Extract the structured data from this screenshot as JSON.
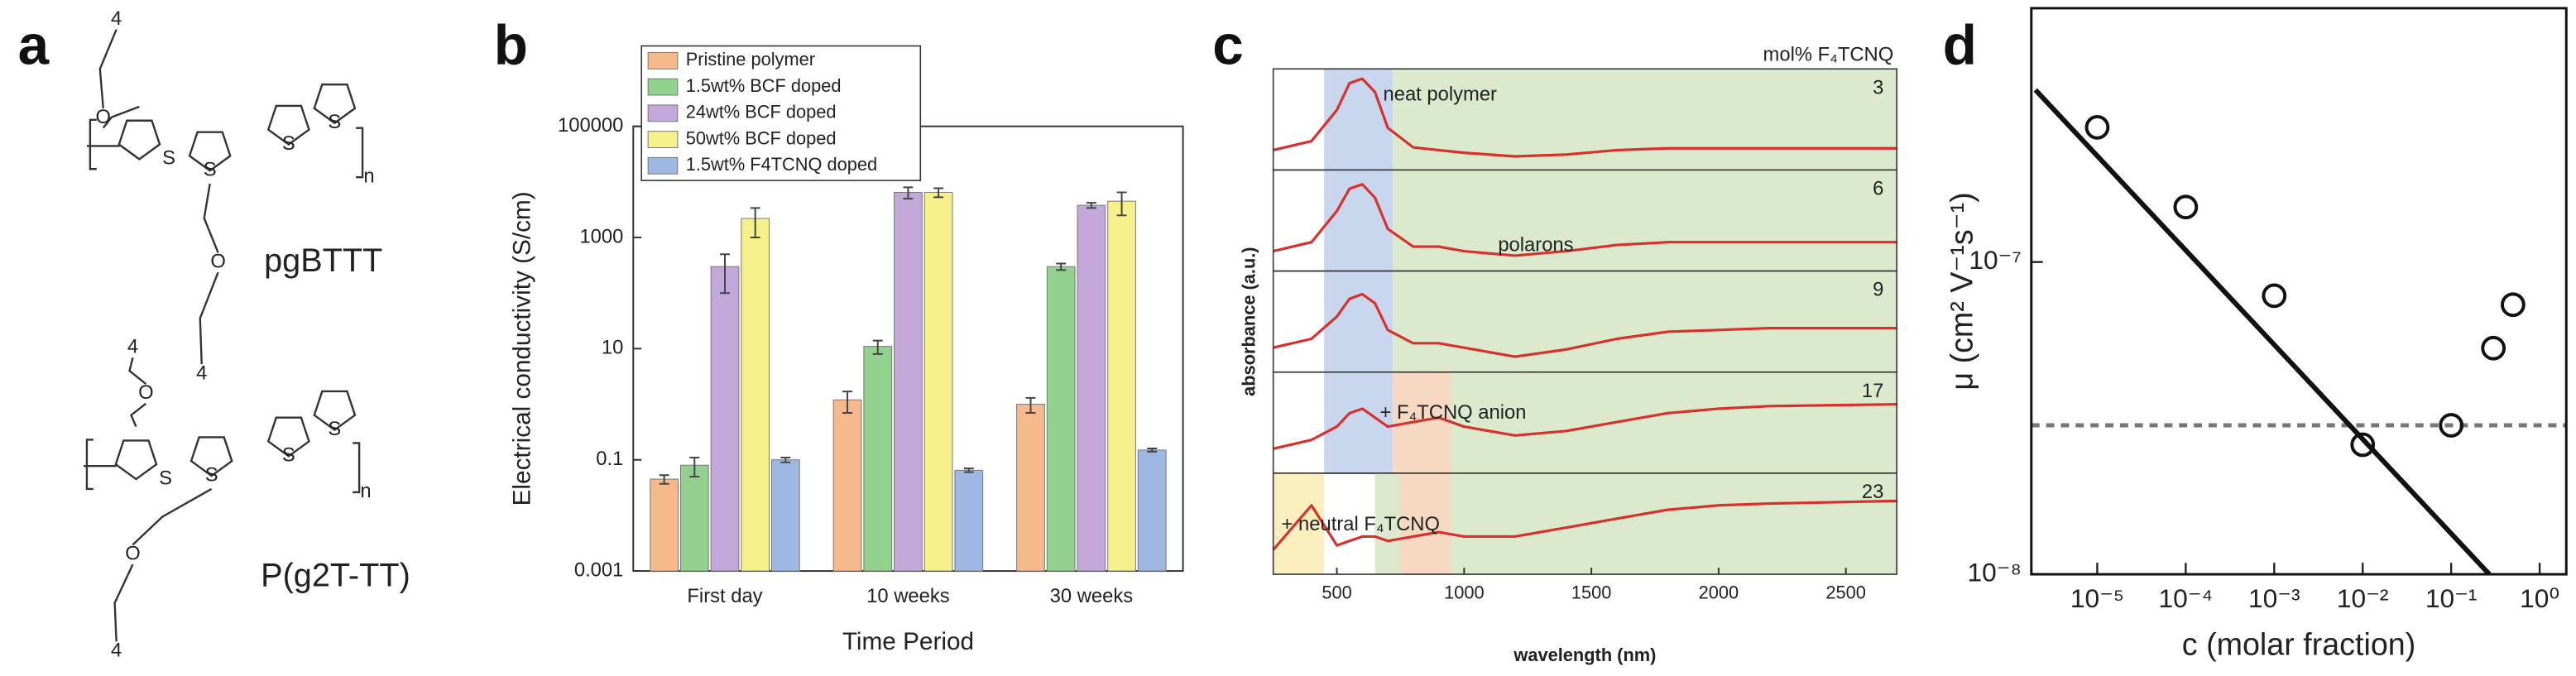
{
  "panel_a": {
    "label": "a",
    "structures": [
      {
        "name": "pgBTTT",
        "atoms": [
          "4",
          "O",
          "S",
          "S",
          "S",
          "S",
          "n",
          "O",
          "4"
        ]
      },
      {
        "name": "P(g2T-TT)",
        "atoms": [
          "4",
          "O",
          "S",
          "S",
          "S",
          "S",
          "n",
          "O",
          "4"
        ]
      }
    ]
  },
  "chart_data": [
    {
      "panel_label": "b",
      "type": "bar",
      "log_y": true,
      "ylabel": "Electrical conductivity (S/cm)",
      "xlabel": "Time Period",
      "categories": [
        "First day",
        "10 weeks",
        "30 weeks"
      ],
      "ylim": [
        0.001,
        100000
      ],
      "yticks": [
        0.001,
        0.1,
        10,
        1000,
        100000
      ],
      "legend": "upper left",
      "series": [
        {
          "name": "Pristine polymer",
          "color": "#f7b98b",
          "values": [
            0.045,
            1.2,
            1.0
          ],
          "errors": [
            0.008,
            0.5,
            0.3
          ]
        },
        {
          "name": "1.5wt% BCF doped",
          "color": "#93d18f",
          "values": [
            0.08,
            11,
            300
          ],
          "errors": [
            0.03,
            3,
            40
          ]
        },
        {
          "name": "24wt% BCF doped",
          "color": "#c3a9d9",
          "values": [
            300,
            6500,
            3800
          ],
          "errors": [
            200,
            1500,
            400
          ]
        },
        {
          "name": "50wt% BCF doped",
          "color": "#f5f08a",
          "values": [
            2200,
            6500,
            4500
          ],
          "errors": [
            1200,
            1200,
            2000
          ]
        },
        {
          "name": "1.5wt% F4TCNQ doped",
          "color": "#9db8e3",
          "values": [
            0.1,
            0.065,
            0.15
          ],
          "errors": [
            0.01,
            0.005,
            0.01
          ]
        }
      ]
    },
    {
      "panel_label": "c",
      "type": "line",
      "title": "mol% F₄TCNQ",
      "xlabel": "wavelength (nm)",
      "ylabel": "absorbance (a.u.)",
      "x": [
        250,
        400,
        500,
        550,
        600,
        650,
        700,
        800,
        900,
        1000,
        1200,
        1400,
        1600,
        1800,
        2000,
        2200,
        2700
      ],
      "xlim": [
        250,
        2700
      ],
      "xticks": [
        500,
        1000,
        1500,
        2000,
        2500
      ],
      "series": [
        {
          "name": "3",
          "color": "#d9302c",
          "values": [
            0.15,
            0.25,
            0.6,
            0.9,
            0.95,
            0.8,
            0.4,
            0.18,
            0.15,
            0.12,
            0.08,
            0.1,
            0.15,
            0.17,
            0.17,
            0.17,
            0.17
          ],
          "regions": [
            {
              "from": 450,
              "to": 720,
              "color": "#c9d7ee"
            },
            {
              "from": 720,
              "to": 2700,
              "color": "#dbe9cc"
            }
          ],
          "annotation": {
            "text": "neat polymer",
            "color": "#4a6fb3"
          }
        },
        {
          "name": "6",
          "color": "#d9302c",
          "values": [
            0.15,
            0.25,
            0.6,
            0.85,
            0.9,
            0.75,
            0.4,
            0.2,
            0.2,
            0.15,
            0.1,
            0.15,
            0.22,
            0.25,
            0.25,
            0.25,
            0.25
          ],
          "regions": [
            {
              "from": 450,
              "to": 720,
              "color": "#c9d7ee"
            },
            {
              "from": 720,
              "to": 2700,
              "color": "#dbe9cc"
            }
          ],
          "annotation": {
            "text": "polarons",
            "color": "#5a9a3a"
          }
        },
        {
          "name": "9",
          "color": "#d9302c",
          "values": [
            0.2,
            0.3,
            0.55,
            0.75,
            0.8,
            0.7,
            0.4,
            0.25,
            0.25,
            0.2,
            0.1,
            0.18,
            0.3,
            0.38,
            0.4,
            0.42,
            0.42
          ],
          "regions": [
            {
              "from": 450,
              "to": 720,
              "color": "#c9d7ee"
            },
            {
              "from": 720,
              "to": 2700,
              "color": "#dbe9cc"
            }
          ]
        },
        {
          "name": "17",
          "color": "#d9302c",
          "values": [
            0.2,
            0.3,
            0.45,
            0.6,
            0.65,
            0.55,
            0.45,
            0.5,
            0.55,
            0.45,
            0.35,
            0.4,
            0.5,
            0.6,
            0.65,
            0.68,
            0.7
          ],
          "regions": [
            {
              "from": 450,
              "to": 720,
              "color": "#c9d7ee"
            },
            {
              "from": 720,
              "to": 950,
              "color": "#f7d9c3"
            },
            {
              "from": 950,
              "to": 2700,
              "color": "#dbe9cc"
            }
          ],
          "annotation": {
            "text": "+ F₄TCNQ anion",
            "color": "#e07040"
          }
        },
        {
          "name": "23",
          "color": "#d9302c",
          "values": [
            0.2,
            0.7,
            0.25,
            0.3,
            0.35,
            0.35,
            0.3,
            0.35,
            0.4,
            0.35,
            0.35,
            0.45,
            0.55,
            0.65,
            0.7,
            0.72,
            0.75
          ],
          "regions": [
            {
              "from": 250,
              "to": 450,
              "color": "#fbefc0"
            },
            {
              "from": 650,
              "to": 750,
              "color": "#dbe9cc"
            },
            {
              "from": 750,
              "to": 950,
              "color": "#f7d9c3"
            },
            {
              "from": 950,
              "to": 2700,
              "color": "#dbe9cc"
            }
          ],
          "annotation": {
            "text": "+ neutral F₄TCNQ",
            "color": "#e8b030"
          }
        }
      ]
    },
    {
      "panel_label": "d",
      "type": "scatter",
      "log_x": true,
      "log_y": true,
      "ylabel": "μ (cm² V⁻¹s⁻¹)",
      "xlabel": "c (molar fraction)",
      "xlim": [
        1.8e-06,
        2
      ],
      "ylim": [
        1e-08,
        6.5e-07
      ],
      "xticks": [
        {
          "value": 1e-05,
          "label": "10⁻⁵"
        },
        {
          "value": 0.0001,
          "label": "10⁻⁴"
        },
        {
          "value": 0.001,
          "label": "10⁻³"
        },
        {
          "value": 0.01,
          "label": "10⁻²"
        },
        {
          "value": 0.1,
          "label": "10⁻¹"
        },
        {
          "value": 1,
          "label": "10⁰"
        }
      ],
      "yticks": [
        {
          "value": 1e-08,
          "label": "10⁻⁸"
        },
        {
          "value": 1e-07,
          "label": "10⁻⁷"
        }
      ],
      "points": {
        "x": [
          1e-05,
          0.0001,
          0.001,
          0.01,
          0.1,
          0.3,
          0.5
        ],
        "values": [
          2.7e-07,
          1.5e-07,
          7.8e-08,
          2.6e-08,
          3e-08,
          5.3e-08,
          7.3e-08
        ]
      },
      "fit": {
        "x": [
          2e-06,
          0.27
        ],
        "values": [
          3.56e-07,
          1e-08
        ]
      },
      "hline": 3e-08
    }
  ]
}
